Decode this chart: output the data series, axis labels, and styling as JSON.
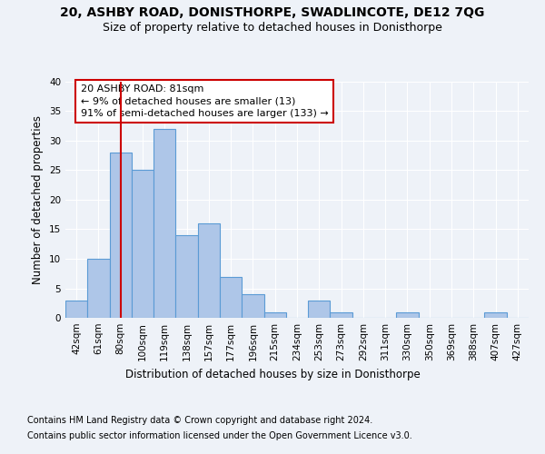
{
  "title1": "20, ASHBY ROAD, DONISTHORPE, SWADLINCOTE, DE12 7QG",
  "title2": "Size of property relative to detached houses in Donisthorpe",
  "xlabel": "Distribution of detached houses by size in Donisthorpe",
  "ylabel": "Number of detached properties",
  "bin_labels": [
    "42sqm",
    "61sqm",
    "80sqm",
    "100sqm",
    "119sqm",
    "138sqm",
    "157sqm",
    "177sqm",
    "196sqm",
    "215sqm",
    "234sqm",
    "253sqm",
    "273sqm",
    "292sqm",
    "311sqm",
    "330sqm",
    "350sqm",
    "369sqm",
    "388sqm",
    "407sqm",
    "427sqm"
  ],
  "bar_values": [
    3,
    10,
    28,
    25,
    32,
    14,
    16,
    7,
    4,
    1,
    0,
    3,
    1,
    0,
    0,
    1,
    0,
    0,
    0,
    1,
    0
  ],
  "bar_color": "#aec6e8",
  "bar_edge_color": "#5b9bd5",
  "annotation_box_text": "20 ASHBY ROAD: 81sqm\n← 9% of detached houses are smaller (13)\n91% of semi-detached houses are larger (133) →",
  "annotation_box_edge_color": "#cc0000",
  "vline_color": "#cc0000",
  "vline_x_label": "80sqm",
  "ylim": [
    0,
    40
  ],
  "yticks": [
    0,
    5,
    10,
    15,
    20,
    25,
    30,
    35,
    40
  ],
  "footnote1": "Contains HM Land Registry data © Crown copyright and database right 2024.",
  "footnote2": "Contains public sector information licensed under the Open Government Licence v3.0.",
  "background_color": "#eef2f8",
  "plot_bg_color": "#eef2f8",
  "grid_color": "#ffffff",
  "title1_fontsize": 10,
  "title2_fontsize": 9,
  "axis_label_fontsize": 8.5,
  "tick_fontsize": 7.5,
  "footnote_fontsize": 7,
  "annotation_fontsize": 8
}
